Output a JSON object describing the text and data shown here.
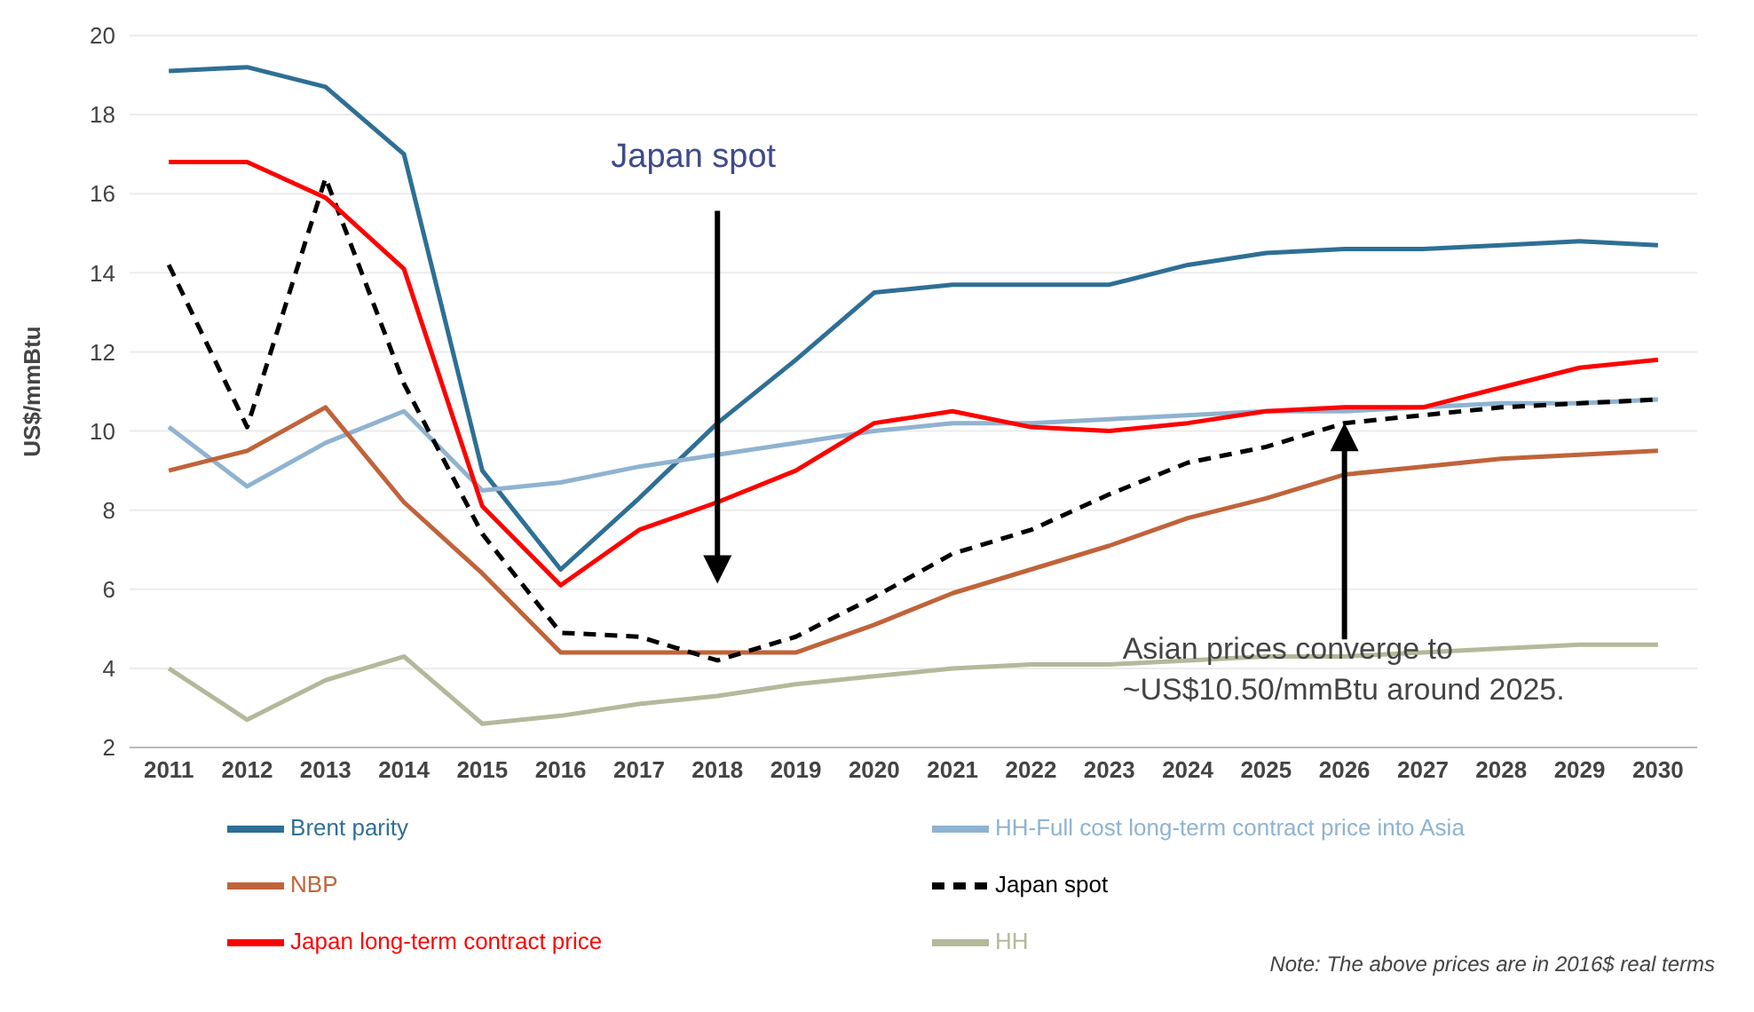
{
  "chart_data": {
    "type": "line",
    "ylabel": "US$/mmBtu",
    "categories": [
      "2011",
      "2012",
      "2013",
      "2014",
      "2015",
      "2016",
      "2017",
      "2018",
      "2019",
      "2020",
      "2021",
      "2022",
      "2023",
      "2024",
      "2025",
      "2026",
      "2027",
      "2028",
      "2029",
      "2030"
    ],
    "series": [
      {
        "name": "Brent parity",
        "color": "#2e6f95",
        "values": [
          19.1,
          19.2,
          18.7,
          17.0,
          9.0,
          6.5,
          8.3,
          10.2,
          11.8,
          13.5,
          13.7,
          13.7,
          13.7,
          14.2,
          14.5,
          14.6,
          14.6,
          14.7,
          14.8,
          14.7
        ]
      },
      {
        "name": "HH-Full cost long-term contract price into Asia",
        "color": "#8fb3d0",
        "values": [
          10.1,
          8.6,
          9.7,
          10.5,
          8.5,
          8.7,
          9.1,
          9.4,
          9.7,
          10.0,
          10.2,
          10.2,
          10.3,
          10.4,
          10.5,
          10.5,
          10.6,
          10.7,
          10.7,
          10.8
        ]
      },
      {
        "name": "NBP",
        "color": "#c0633a",
        "values": [
          9.0,
          9.5,
          10.6,
          8.2,
          6.4,
          4.4,
          4.4,
          4.4,
          4.4,
          5.1,
          5.9,
          6.5,
          7.1,
          7.8,
          8.3,
          8.9,
          9.1,
          9.3,
          9.4,
          9.5
        ]
      },
      {
        "name": "Japan spot",
        "color": "#000000",
        "line_style": "dashed",
        "values": [
          14.2,
          10.1,
          16.4,
          11.2,
          7.4,
          4.9,
          4.8,
          4.2,
          4.8,
          5.8,
          6.9,
          7.5,
          8.4,
          9.2,
          9.6,
          10.2,
          10.4,
          10.6,
          10.7,
          10.8
        ]
      },
      {
        "name": "Japan long-term contract price",
        "color": "#ff0000",
        "values": [
          16.8,
          16.8,
          15.9,
          14.1,
          8.1,
          6.1,
          7.5,
          8.2,
          9.0,
          10.2,
          10.5,
          10.1,
          10.0,
          10.2,
          10.5,
          10.6,
          10.6,
          11.1,
          11.6,
          11.8
        ]
      },
      {
        "name": "HH",
        "color": "#b5b89a",
        "values": [
          4.0,
          2.7,
          3.7,
          4.3,
          2.6,
          2.8,
          3.1,
          3.3,
          3.6,
          3.8,
          4.0,
          4.1,
          4.1,
          4.2,
          4.3,
          4.3,
          4.4,
          4.5,
          4.6,
          4.6
        ]
      }
    ],
    "ylim": [
      2,
      20
    ],
    "yticks": [
      2,
      4,
      6,
      8,
      10,
      12,
      14,
      16,
      18,
      20
    ],
    "grid": "y",
    "legend": "bottom",
    "marker": "none",
    "line_style": "solid",
    "annotations": [
      "Japan spot",
      "Asian prices converge to ~US$10.50/mmBtu around 2025.",
      "Note: The above prices are in 2016$ real terms"
    ]
  }
}
